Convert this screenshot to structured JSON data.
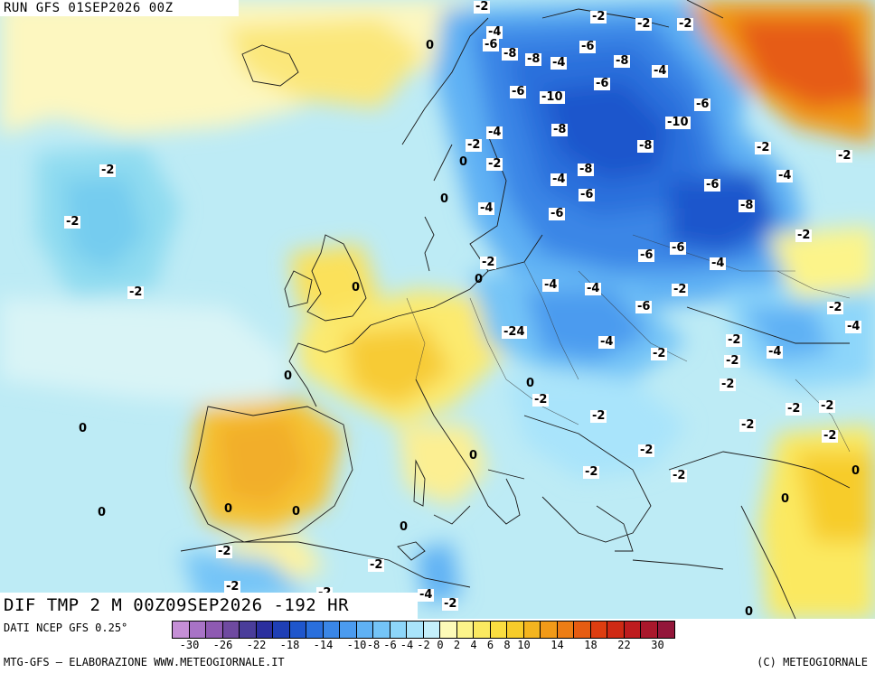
{
  "header": {
    "run_title": "RUN GFS 01SEP2026 00Z"
  },
  "map": {
    "title": "DIF TMP 2 M 00Z09SEP2026 -192 HR",
    "labels": [
      {
        "text": "-2"
      },
      {
        "text": "-2"
      },
      {
        "text": "-2"
      },
      {
        "text": "-2"
      },
      {
        "text": "-4"
      },
      {
        "text": "0"
      },
      {
        "text": "-6"
      },
      {
        "text": "-8"
      },
      {
        "text": "-8"
      },
      {
        "text": "-4"
      },
      {
        "text": "-6"
      },
      {
        "text": "-8"
      },
      {
        "text": "-4"
      },
      {
        "text": "-6"
      },
      {
        "text": "-6"
      },
      {
        "text": "-10"
      },
      {
        "text": "-6"
      },
      {
        "text": "-10"
      },
      {
        "text": "-4"
      },
      {
        "text": "-8"
      },
      {
        "text": "-8"
      },
      {
        "text": "-2"
      },
      {
        "text": "-2"
      },
      {
        "text": "-2"
      },
      {
        "text": "0"
      },
      {
        "text": "-2"
      },
      {
        "text": "-8"
      },
      {
        "text": "-4"
      },
      {
        "text": "-4"
      },
      {
        "text": "-6"
      },
      {
        "text": "0"
      },
      {
        "text": "-6"
      },
      {
        "text": "-4"
      },
      {
        "text": "-8"
      },
      {
        "text": "-2"
      },
      {
        "text": "-2"
      },
      {
        "text": "-6"
      },
      {
        "text": "-6"
      },
      {
        "text": "-2"
      },
      {
        "text": "-4"
      },
      {
        "text": "-2"
      },
      {
        "text": "0"
      },
      {
        "text": "-6"
      },
      {
        "text": "0"
      },
      {
        "text": "-4"
      },
      {
        "text": "-4"
      },
      {
        "text": "-2"
      },
      {
        "text": "-2"
      },
      {
        "text": "-6"
      },
      {
        "text": "-2"
      },
      {
        "text": "-4"
      },
      {
        "text": "-24"
      },
      {
        "text": "-4"
      },
      {
        "text": "-2"
      },
      {
        "text": "-2"
      },
      {
        "text": "-4"
      },
      {
        "text": "0"
      },
      {
        "text": "-2"
      },
      {
        "text": "-2"
      },
      {
        "text": "0"
      },
      {
        "text": "-2"
      },
      {
        "text": "-2"
      },
      {
        "text": "-2"
      },
      {
        "text": "-2"
      },
      {
        "text": "0"
      },
      {
        "text": "-2"
      },
      {
        "text": "-2"
      },
      {
        "text": "-2"
      },
      {
        "text": "0"
      },
      {
        "text": "-2"
      },
      {
        "text": "-2"
      },
      {
        "text": "0"
      },
      {
        "text": "0"
      },
      {
        "text": "0"
      },
      {
        "text": "0"
      },
      {
        "text": "-2"
      },
      {
        "text": "-2"
      },
      {
        "text": "0"
      },
      {
        "text": "-2"
      },
      {
        "text": "-4"
      },
      {
        "text": "-2"
      },
      {
        "text": "0"
      },
      {
        "text": "0"
      },
      {
        "text": "-2"
      }
    ]
  },
  "footer": {
    "data_source": "DATI NCEP GFS 0.25°",
    "credit_left": "MTG-GFS — ELABORAZIONE WWW.METEOGIORNALE.IT",
    "credit_right": "(C) METEOGIORNALE"
  },
  "legend": {
    "colors": [
      "#c58fd6",
      "#a873c6",
      "#8e5ab2",
      "#6f4aa0",
      "#4a3d9a",
      "#2b2f9e",
      "#1f3fb5",
      "#1f56cc",
      "#2a6fdc",
      "#3a86e6",
      "#4b9bef",
      "#5fb1f4",
      "#74c4f7",
      "#8dd6fa",
      "#a9e4fb",
      "#c4effb",
      "#fdfbb8",
      "#fcf48a",
      "#fbe960",
      "#fadd40",
      "#f7cc2a",
      "#f4b51f",
      "#f19a18",
      "#ec7d15",
      "#e65c12",
      "#dd3e10",
      "#cf2a14",
      "#be1c1e",
      "#a9182c",
      "#93163a"
    ],
    "ticks": [
      "-30",
      "-26",
      "-22",
      "-18",
      "-14",
      "-10",
      "-8",
      "-6",
      "-4",
      "-2",
      "0",
      "2",
      "4",
      "6",
      "8",
      "10",
      "14",
      "18",
      "22",
      "30"
    ]
  }
}
